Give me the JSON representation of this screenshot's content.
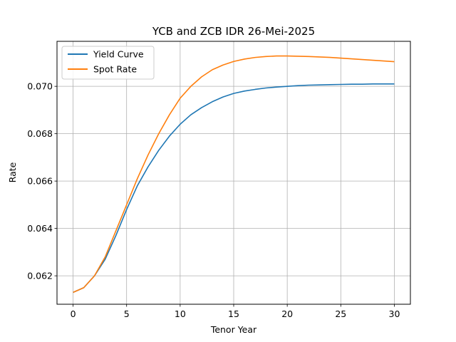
{
  "chart_data": {
    "type": "line",
    "title": "YCB and ZCB IDR 26-Mei-2025",
    "xlabel": "Tenor Year",
    "ylabel": "Rate",
    "xlim": [
      -1.5,
      31.5
    ],
    "ylim": [
      0.0608,
      0.0719
    ],
    "xticks": [
      0,
      5,
      10,
      15,
      20,
      25,
      30
    ],
    "yticks": [
      0.062,
      0.064,
      0.066,
      0.068,
      0.07
    ],
    "ytick_labels": [
      "0.062",
      "0.064",
      "0.066",
      "0.068",
      "0.070"
    ],
    "grid": true,
    "legend_position": "upper-left",
    "x": [
      0,
      1,
      2,
      3,
      4,
      5,
      6,
      7,
      8,
      9,
      10,
      11,
      12,
      13,
      14,
      15,
      16,
      17,
      18,
      19,
      20,
      21,
      22,
      23,
      24,
      25,
      26,
      27,
      28,
      29,
      30
    ],
    "series": [
      {
        "name": "Yield Curve",
        "color": "#1f77b4",
        "values": [
          0.0613,
          0.0615,
          0.062,
          0.0627,
          0.0637,
          0.0648,
          0.0658,
          0.0666,
          0.0673,
          0.0679,
          0.0684,
          0.0688,
          0.0691,
          0.06935,
          0.06955,
          0.0697,
          0.0698,
          0.06987,
          0.06993,
          0.06997,
          0.07,
          0.07003,
          0.07005,
          0.07006,
          0.07007,
          0.07008,
          0.07009,
          0.07009,
          0.0701,
          0.0701,
          0.0701
        ]
      },
      {
        "name": "Spot Rate",
        "color": "#ff7f0e",
        "values": [
          0.0613,
          0.0615,
          0.062,
          0.0628,
          0.0639,
          0.065,
          0.0661,
          0.0671,
          0.068,
          0.0688,
          0.0695,
          0.07,
          0.0704,
          0.0707,
          0.0709,
          0.07105,
          0.07115,
          0.07122,
          0.07126,
          0.07128,
          0.07128,
          0.07127,
          0.07126,
          0.07124,
          0.07122,
          0.07119,
          0.07116,
          0.07113,
          0.0711,
          0.07107,
          0.07104
        ]
      }
    ]
  }
}
